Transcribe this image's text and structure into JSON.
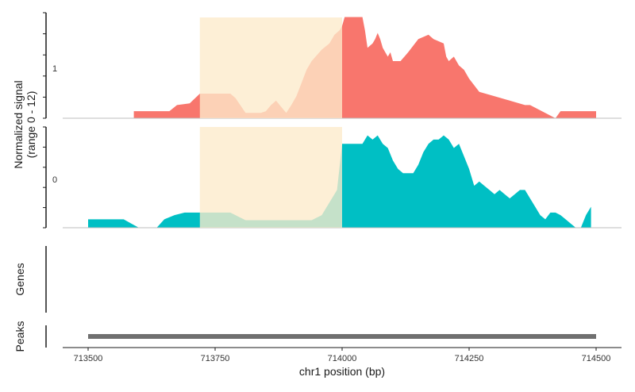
{
  "chart_data": {
    "type": "area",
    "ylabel_line1": "Normalized signal",
    "ylabel_line2": "(range 0 - 12)",
    "xlabel": "chr1 position (bp)",
    "xlim": [
      713450,
      714550
    ],
    "x_ticks": [
      713500,
      713750,
      714000,
      714250,
      714500
    ],
    "x_tick_labels": [
      "713500",
      "713750",
      "714000",
      "714250",
      "714500"
    ],
    "ylim": [
      0,
      12
    ],
    "highlight": {
      "start": 713720,
      "end": 714000,
      "color": "#FDEBCB"
    },
    "series": [
      {
        "name": "1",
        "color": "#F8766D",
        "x": [
          713590,
          713660,
          713675,
          713700,
          713720,
          713780,
          713790,
          713810,
          713825,
          713840,
          713850,
          713860,
          713870,
          713880,
          713890,
          713900,
          713910,
          713920,
          713930,
          713940,
          713960,
          713975,
          713985,
          713995,
          714000,
          714005,
          714040,
          714045,
          714050,
          714060,
          714065,
          714070,
          714075,
          714080,
          714085,
          714090,
          714095,
          714100,
          714115,
          714130,
          714150,
          714170,
          714180,
          714200,
          714205,
          714210,
          714220,
          714230,
          714240,
          714250,
          714270,
          714300,
          714330,
          714360,
          714370,
          714420,
          714430,
          714460,
          714500
        ],
        "y": [
          0.8,
          0.8,
          1.5,
          1.7,
          2.8,
          2.8,
          2.3,
          0.6,
          0.6,
          0.6,
          0.8,
          1.5,
          2.0,
          1.3,
          0.6,
          1.5,
          2.5,
          4.0,
          5.5,
          6.5,
          7.8,
          8.5,
          9.5,
          10.0,
          10.5,
          11.5,
          11.5,
          10.0,
          8.0,
          8.5,
          9.0,
          9.7,
          9.0,
          8.0,
          7.5,
          7.0,
          7.5,
          6.5,
          6.5,
          7.5,
          9.0,
          9.5,
          9.0,
          8.5,
          7.0,
          6.5,
          7.0,
          6.0,
          5.5,
          4.5,
          3.0,
          2.5,
          2.0,
          1.5,
          1.5,
          0.0,
          0.8,
          0.8,
          0.8
        ]
      },
      {
        "name": "0",
        "color": "#00BFC4",
        "x": [
          713500,
          713560,
          713570,
          713585,
          713600,
          713635,
          713650,
          713670,
          713690,
          713720,
          713780,
          713790,
          713810,
          713850,
          713900,
          713940,
          713960,
          713970,
          713980,
          713990,
          714000,
          714040,
          714050,
          714060,
          714070,
          714080,
          714090,
          714100,
          714110,
          714120,
          714140,
          714150,
          714160,
          714170,
          714180,
          714190,
          714200,
          714210,
          714220,
          714230,
          714240,
          714250,
          714260,
          714270,
          714280,
          714290,
          714300,
          714310,
          714320,
          714330,
          714340,
          714350,
          714360,
          714370,
          714380,
          714390,
          714400,
          714410,
          714420,
          714430,
          714440,
          714450,
          714460,
          714470,
          714480,
          714490
        ],
        "y": [
          1.0,
          1.0,
          1.0,
          0.5,
          0.0,
          0.0,
          1.0,
          1.5,
          1.8,
          1.8,
          1.8,
          1.5,
          0.9,
          0.9,
          0.9,
          0.9,
          1.5,
          2.5,
          3.5,
          4.5,
          10.0,
          10.0,
          11.0,
          10.5,
          11.0,
          10.0,
          9.5,
          8.0,
          7.0,
          6.5,
          6.5,
          7.5,
          9.0,
          10.0,
          10.5,
          10.5,
          11.0,
          10.5,
          9.5,
          10.0,
          8.5,
          7.0,
          5.0,
          5.5,
          5.0,
          4.5,
          4.0,
          4.5,
          4.0,
          3.5,
          4.0,
          4.5,
          4.5,
          3.5,
          2.5,
          1.5,
          1.0,
          1.8,
          1.8,
          1.5,
          1.0,
          0.5,
          0.0,
          0.0,
          1.5,
          2.5
        ]
      }
    ],
    "tracks": {
      "genes_label": "Genes",
      "peaks_label": "Peaks",
      "peaks": [
        {
          "start": 713500,
          "end": 714500,
          "color": "#707070"
        }
      ]
    },
    "grid": false
  }
}
